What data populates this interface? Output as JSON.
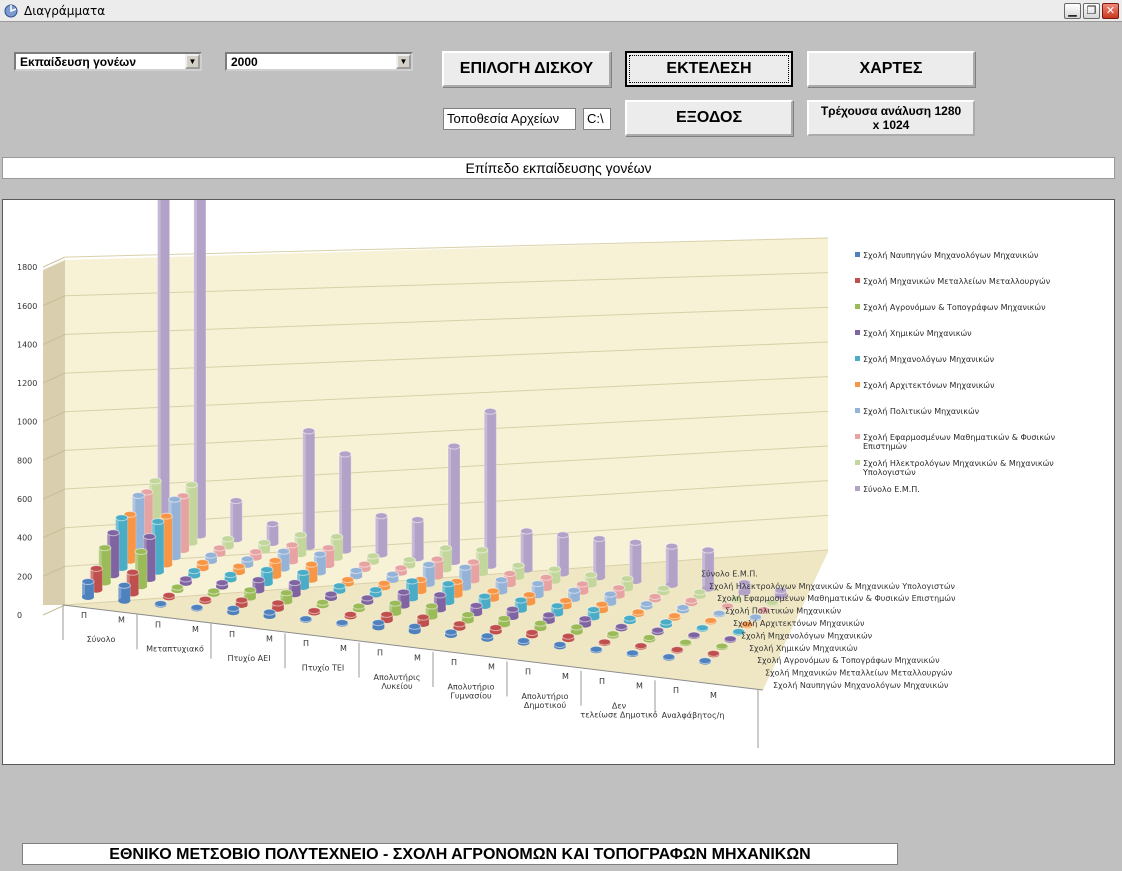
{
  "window": {
    "title": "Διαγράμματα",
    "icon": "app-icon",
    "controls": [
      "minimize-icon",
      "maximize-icon",
      "close-icon"
    ]
  },
  "controls": {
    "category_select": "Εκπαίδευση γονέων",
    "year_select": "2000",
    "select_disk_label": "ΕΠΙΛΟΓΗ ΔΙΣΚΟΥ",
    "run_label": "ΕΚΤΕΛΕΣΗ",
    "maps_label": "ΧΑΡΤΕΣ",
    "files_location_label": "Τοποθεσία Αρχείων",
    "drive_value": "C:\\",
    "exit_label": "ΕΞΟΔΟΣ",
    "resolution_line1": "Τρέχουσα ανάλυση 1280",
    "resolution_line2": "x  1024"
  },
  "headline": "Επίπεδο εκπαίδευσης γονέων",
  "footer": "ΕΘΝΙΚΟ ΜΕΤΣΟΒΙΟ ΠΟΛΥΤΕΧΝΕΙΟ - ΣΧΟΛΗ ΑΓΡΟΝΟΜΩΝ ΚΑΙ ΤΟΠΟΓΡΑΦΩΝ ΜΗΧΑΝΙΚΩΝ",
  "chart_data": {
    "type": "bar",
    "subtype": "3d-cylinder",
    "ylim": [
      0,
      1800
    ],
    "y_ticks": [
      0,
      200,
      400,
      600,
      800,
      1000,
      1200,
      1400,
      1600,
      1800
    ],
    "grid": true,
    "legend_position": "right",
    "groups": [
      "Σύνολο",
      "Μεταπτυχιακό",
      "Πτυχίο ΑΕΙ",
      "Πτυχίο ΤΕΙ",
      "Απολυτήριο Λυκείου",
      "Απολυτήριο Γυμνασίου",
      "Απολυτήριο Δημοτικού",
      "Δεν τελείωσε Δημοτικό",
      "Αναλφάβητος/η"
    ],
    "group_labels": [
      "Σύνολο",
      "Μεταπτυχιακό",
      "Πτυχίο ΑΕΙ",
      "Πτυχίο ΤΕΙ",
      "Απολυτήρις Λυκείου",
      "Απολυτήριο Γυμνασίου",
      "Απολυτήριο Δημοτικού",
      "Δεν τελείωσε Δημοτικό",
      "Αναλφάβητος/η"
    ],
    "subcategories": [
      "Π",
      "Μ"
    ],
    "categories": [
      "Σύνολο Π",
      "Σύνολο Μ",
      "Μεταπτυχιακό Π",
      "Μεταπτυχιακό Μ",
      "Πτυχίο ΑΕΙ Π",
      "Πτυχίο ΑΕΙ Μ",
      "Πτυχίο ΤΕΙ Π",
      "Πτυχίο ΤΕΙ Μ",
      "Απολυτήριο Λυκείου Π",
      "Απολυτήριο Λυκείου Μ",
      "Απολυτήριο Γυμνασίου Π",
      "Απολυτήριο Γυμνασίου Μ",
      "Απολυτήριο Δημοτικού Π",
      "Απολυτήριο Δημοτικού Μ",
      "Δεν τελείωσε Δημοτικό Π",
      "Δεν τελείωσε Δημοτικό Μ",
      "Αναλφάβητος/η Π",
      "Αναλφάβητος/η Μ"
    ],
    "series": [
      {
        "name": "Σχολή Ναυπηγών Μηχανολόγων Μηχανικών",
        "color": "#4f81bd",
        "values": [
          80,
          80,
          5,
          5,
          20,
          20,
          5,
          5,
          25,
          25,
          15,
          15,
          10,
          10,
          5,
          5,
          0,
          0
        ]
      },
      {
        "name": "Σχολή Μηχανικών Μεταλλείων Μεταλλουργών",
        "color": "#c0504d",
        "values": [
          110,
          110,
          10,
          10,
          25,
          30,
          10,
          10,
          30,
          35,
          20,
          20,
          15,
          15,
          5,
          5,
          0,
          0
        ]
      },
      {
        "name": "Σχολή Αγρονόμων & Τοπογράφων Μηχανικών",
        "color": "#9bbb59",
        "values": [
          180,
          180,
          15,
          15,
          40,
          45,
          15,
          15,
          50,
          55,
          30,
          30,
          25,
          25,
          10,
          10,
          0,
          0
        ]
      },
      {
        "name": "Σχολή Χημικών Μηχανικών",
        "color": "#8064a2",
        "values": [
          220,
          220,
          20,
          20,
          55,
          60,
          20,
          20,
          70,
          75,
          40,
          40,
          30,
          30,
          10,
          10,
          0,
          0
        ]
      },
      {
        "name": "Σχολή Μηχανολόγων Μηχανικών",
        "color": "#4bacc6",
        "values": [
          260,
          260,
          25,
          25,
          70,
          75,
          25,
          25,
          90,
          95,
          50,
          50,
          40,
          40,
          15,
          15,
          0,
          0
        ]
      },
      {
        "name": "Σχολή Αρχιτεκτόνων Μηχανικών",
        "color": "#f79646",
        "values": [
          240,
          250,
          30,
          30,
          80,
          80,
          20,
          20,
          60,
          70,
          40,
          40,
          30,
          30,
          10,
          10,
          0,
          0
        ]
      },
      {
        "name": "Σχολή Πολιτικών Μηχανικών",
        "color": "#95b3d7",
        "values": [
          300,
          300,
          30,
          30,
          90,
          95,
          30,
          30,
          100,
          105,
          60,
          60,
          45,
          45,
          15,
          15,
          0,
          0
        ]
      },
      {
        "name": "Σχολή Εφαρμοσμένων Μαθηματικών & Φυσικών Επιστημών",
        "color": "#e6a3a2",
        "values": [
          280,
          280,
          30,
          30,
          85,
          90,
          25,
          25,
          90,
          95,
          55,
          55,
          40,
          40,
          15,
          15,
          0,
          0
        ]
      },
      {
        "name": "Σχολή Ηλεκτρολόγων Μηχανικών & Μηχανικών Υπολογιστών",
        "color": "#c3d69b",
        "values": [
          300,
          300,
          40,
          40,
          100,
          110,
          30,
          30,
          110,
          120,
          60,
          60,
          50,
          50,
          20,
          20,
          0,
          0
        ]
      },
      {
        "name": "Σύνολο Ε.Μ.Π.",
        "color": "#b3a2c7",
        "values": [
          1900,
          1850,
          200,
          100,
          600,
          500,
          200,
          200,
          600,
          800,
          200,
          200,
          200,
          200,
          200,
          200,
          50,
          30
        ]
      }
    ]
  }
}
